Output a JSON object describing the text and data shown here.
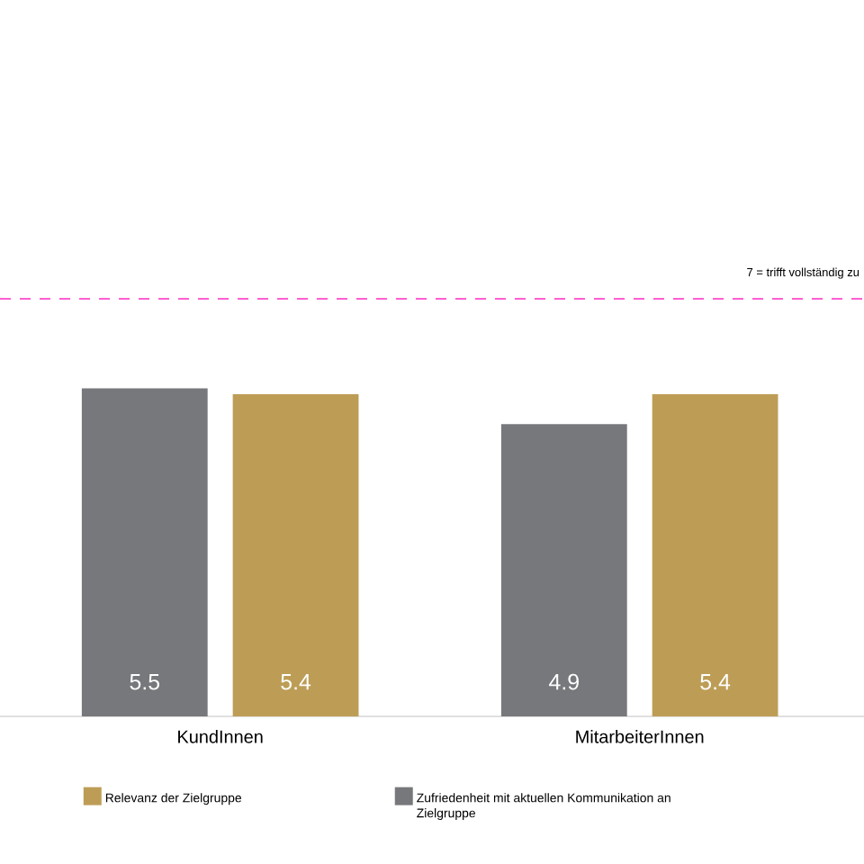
{
  "chart_data": {
    "type": "bar",
    "categories": [
      "KundInnen",
      "MitarbeiterInnen"
    ],
    "series": [
      {
        "name": "Zufriedenheit mit aktuellen Kommunikation an Zielgruppe",
        "color": "#76787b",
        "values": [
          5.5,
          4.9
        ],
        "value_labels": [
          "5.5",
          "4.9"
        ]
      },
      {
        "name": "Relevanz der Zielgruppe",
        "color": "#bd9d56",
        "values": [
          5.4,
          5.4
        ],
        "value_labels": [
          "5.4",
          "5.4"
        ]
      }
    ],
    "ylim": [
      0,
      7
    ],
    "tick_labels": "x",
    "grid": false,
    "legend": "bottom",
    "ref_lines": [
      {
        "axis": "y",
        "value": 7,
        "label": "7 = trifft vollständig zu",
        "color": "#ff5fd2",
        "line_style": "dashed"
      }
    ]
  }
}
